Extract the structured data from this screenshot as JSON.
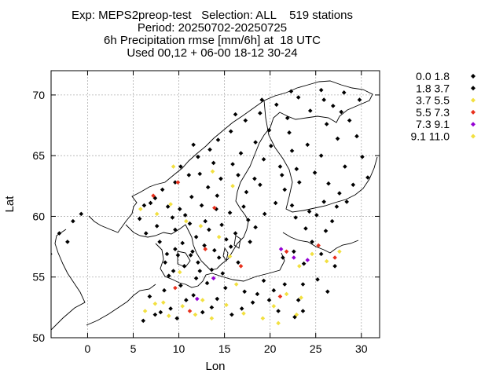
{
  "chart_data": {
    "type": "scatter",
    "title_lines": [
      "Exp: MEPS2preop-test   Selection: ALL    519 stations",
      "Period: 20250702-20250725",
      "6h Precipitation rmse [mm/6h] at  18 UTC",
      "Used 00,12 + 06-00 18-12 30-24"
    ],
    "xlabel": "Lon",
    "ylabel": "Lat",
    "xlim": [
      -4,
      32
    ],
    "ylim": [
      50,
      72
    ],
    "xticks": [
      0,
      5,
      10,
      15,
      20,
      25,
      30
    ],
    "yticks": [
      50,
      55,
      60,
      65,
      70
    ],
    "grid": true,
    "legend_position": "outside-right",
    "classes": [
      {
        "label": "0.0 1.8",
        "color": "#000000"
      },
      {
        "label": "1.8 3.7",
        "color": "#000000"
      },
      {
        "label": "3.7 5.5",
        "color": "#f2e040"
      },
      {
        "label": "5.5 7.3",
        "color": "#e8301c"
      },
      {
        "label": "7.3 9.1",
        "color": "#9400d3"
      },
      {
        "label": "9.1 11.0",
        "color": "#f2e040"
      }
    ],
    "points": [
      [
        8.0,
        52.1,
        0
      ],
      [
        9.8,
        51.6,
        0
      ],
      [
        11.6,
        53.5,
        0
      ],
      [
        14.2,
        53.2,
        0
      ],
      [
        16.9,
        52.4,
        0
      ],
      [
        18.6,
        53.6,
        0
      ],
      [
        20.9,
        52.2,
        0
      ],
      [
        22.7,
        51.7,
        0
      ],
      [
        6.1,
        51.4,
        0
      ],
      [
        7.4,
        51.9,
        0
      ],
      [
        9.1,
        52.4,
        0
      ],
      [
        13.6,
        52.5,
        0
      ],
      [
        15.8,
        51.9,
        0
      ],
      [
        19.9,
        53.1,
        0
      ],
      [
        23.6,
        52.2,
        0
      ],
      [
        17.2,
        53.8,
        0
      ],
      [
        10.2,
        54.3,
        0
      ],
      [
        11.9,
        54.9,
        0
      ],
      [
        9.4,
        55.5,
        0
      ],
      [
        10.6,
        55.9,
        0
      ],
      [
        8.5,
        56.2,
        0
      ],
      [
        9.9,
        56.8,
        0
      ],
      [
        12.1,
        56.2,
        0
      ],
      [
        9.6,
        57.3,
        0
      ],
      [
        10.4,
        57.8,
        0
      ],
      [
        13.6,
        55.6,
        0
      ],
      [
        14.4,
        56.6,
        0
      ],
      [
        12.8,
        57.6,
        0
      ],
      [
        15.7,
        57.5,
        0
      ],
      [
        16.5,
        56.2,
        0
      ],
      [
        17.8,
        57.9,
        0
      ],
      [
        18.4,
        59.1,
        0
      ],
      [
        16.2,
        58.6,
        0
      ],
      [
        14.7,
        59.3,
        0
      ],
      [
        13.3,
        58.9,
        0
      ],
      [
        11.9,
        58.3,
        0
      ],
      [
        11.2,
        59.4,
        0
      ],
      [
        10.7,
        60.1,
        0
      ],
      [
        9.3,
        59.9,
        0
      ],
      [
        7.6,
        59.2,
        0
      ],
      [
        6.4,
        58.6,
        0
      ],
      [
        5.7,
        59.8,
        0
      ],
      [
        6.2,
        60.9,
        0
      ],
      [
        7.4,
        61.5,
        0
      ],
      [
        8.2,
        62.2,
        0
      ],
      [
        9.6,
        62.8,
        0
      ],
      [
        11.4,
        61.6,
        0
      ],
      [
        12.5,
        60.9,
        0
      ],
      [
        14.1,
        60.6,
        0
      ],
      [
        15.6,
        60.3,
        0
      ],
      [
        17.1,
        60.8,
        0
      ],
      [
        17.4,
        62.0,
        0
      ],
      [
        18.3,
        63.1,
        0
      ],
      [
        16.5,
        63.4,
        0
      ],
      [
        14.6,
        63.1,
        0
      ],
      [
        13.2,
        62.4,
        0
      ],
      [
        12.3,
        63.5,
        0
      ],
      [
        11.1,
        63.4,
        0
      ],
      [
        10.2,
        64.1,
        0
      ],
      [
        12.1,
        64.9,
        0
      ],
      [
        13.4,
        65.5,
        0
      ],
      [
        14.3,
        66.3,
        0
      ],
      [
        15.7,
        67.0,
        0
      ],
      [
        17.3,
        67.9,
        0
      ],
      [
        18.9,
        68.5,
        0
      ],
      [
        20.7,
        69.2,
        0
      ],
      [
        23.1,
        69.8,
        0
      ],
      [
        25.6,
        70.4,
        0
      ],
      [
        28.1,
        70.2,
        0
      ],
      [
        29.8,
        69.6,
        0
      ],
      [
        26.9,
        69.1,
        0
      ],
      [
        24.4,
        68.7,
        0
      ],
      [
        21.9,
        68.1,
        0
      ],
      [
        19.9,
        67.1,
        0
      ],
      [
        18.4,
        66.1,
        0
      ],
      [
        16.8,
        65.2,
        0
      ],
      [
        19.3,
        64.7,
        0
      ],
      [
        21.1,
        64.1,
        0
      ],
      [
        22.4,
        65.4,
        0
      ],
      [
        24.1,
        65.9,
        0
      ],
      [
        25.6,
        65.0,
        0
      ],
      [
        27.4,
        66.4,
        0
      ],
      [
        26.2,
        67.6,
        0
      ],
      [
        28.7,
        67.9,
        0
      ],
      [
        24.9,
        63.6,
        0
      ],
      [
        23.2,
        62.8,
        0
      ],
      [
        21.6,
        62.2,
        0
      ],
      [
        22.4,
        60.9,
        0
      ],
      [
        24.3,
        60.4,
        0
      ],
      [
        25.9,
        61.2,
        0
      ],
      [
        27.6,
        61.9,
        0
      ],
      [
        29.1,
        62.6,
        0
      ],
      [
        26.4,
        62.7,
        0
      ],
      [
        28.2,
        64.1,
        0
      ],
      [
        30.1,
        64.9,
        0
      ],
      [
        27.3,
        60.8,
        0
      ],
      [
        25.1,
        60.1,
        0
      ],
      [
        22.8,
        59.9,
        0
      ],
      [
        23.9,
        59.0,
        0
      ],
      [
        26.1,
        58.8,
        0
      ],
      [
        24.6,
        57.9,
        0
      ],
      [
        22.6,
        57.1,
        0
      ],
      [
        21.4,
        56.6,
        0
      ],
      [
        23.7,
        56.1,
        0
      ],
      [
        25.2,
        54.8,
        0
      ],
      [
        21.6,
        54.4,
        0
      ],
      [
        19.3,
        54.7,
        0
      ],
      [
        -1.6,
        59.6,
        0
      ],
      [
        -0.7,
        60.2,
        0
      ],
      [
        -2.2,
        57.9,
        0
      ],
      [
        -3.1,
        58.6,
        0
      ],
      [
        -4.1,
        56.9,
        0
      ],
      [
        6.9,
        61.1,
        1
      ],
      [
        8.8,
        60.8,
        1
      ],
      [
        10.1,
        60.6,
        1
      ],
      [
        12.9,
        59.6,
        1
      ],
      [
        15.2,
        58.1,
        1
      ],
      [
        13.9,
        57.2,
        1
      ],
      [
        11.3,
        56.8,
        1
      ],
      [
        8.9,
        55.1,
        1
      ],
      [
        10.8,
        53.1,
        1
      ],
      [
        12.6,
        52.1,
        1
      ],
      [
        15.1,
        54.1,
        1
      ],
      [
        18.1,
        52.9,
        1
      ],
      [
        20.4,
        53.9,
        1
      ],
      [
        6.8,
        53.4,
        1
      ],
      [
        8.4,
        53.9,
        1
      ],
      [
        13.1,
        54.5,
        1
      ],
      [
        14.8,
        55.3,
        1
      ],
      [
        17.6,
        59.7,
        1
      ],
      [
        19.4,
        60.2,
        1
      ],
      [
        20.6,
        61.1,
        1
      ],
      [
        22.9,
        63.9,
        1
      ],
      [
        20.1,
        65.8,
        1
      ],
      [
        22.1,
        66.9,
        1
      ],
      [
        15.9,
        64.3,
        1
      ],
      [
        13.8,
        64.4,
        1
      ],
      [
        11.6,
        65.9,
        1
      ],
      [
        16.2,
        68.4,
        1
      ],
      [
        19.1,
        69.6,
        1
      ],
      [
        22.3,
        70.3,
        1
      ],
      [
        25.9,
        69.6,
        1
      ],
      [
        27.8,
        68.6,
        1
      ],
      [
        29.5,
        66.6,
        1
      ],
      [
        30.7,
        63.2,
        1
      ],
      [
        28.4,
        61.2,
        1
      ],
      [
        26.8,
        59.6,
        1
      ],
      [
        25.6,
        56.9,
        1
      ],
      [
        27.1,
        55.9,
        1
      ],
      [
        23.6,
        54.4,
        1
      ],
      [
        26.3,
        53.8,
        1
      ],
      [
        23.1,
        53.1,
        1
      ],
      [
        9.6,
        58.9,
        1
      ],
      [
        7.9,
        57.9,
        1
      ],
      [
        8.7,
        56.9,
        1
      ],
      [
        12.3,
        55.5,
        1
      ],
      [
        11.5,
        57.1,
        1
      ],
      [
        14.2,
        61.7,
        1
      ],
      [
        18.9,
        62.6,
        1
      ],
      [
        21.3,
        63.4,
        1
      ],
      [
        6.3,
        52.2,
        2
      ],
      [
        7.4,
        52.8,
        2
      ],
      [
        8.9,
        51.8,
        2
      ],
      [
        10.4,
        52.6,
        2
      ],
      [
        11.8,
        51.9,
        2
      ],
      [
        13.6,
        51.6,
        2
      ],
      [
        15.2,
        52.7,
        2
      ],
      [
        17.1,
        52.0,
        2
      ],
      [
        19.2,
        51.6,
        2
      ],
      [
        20.4,
        52.6,
        2
      ],
      [
        21.8,
        53.6,
        2
      ],
      [
        23.4,
        53.3,
        2
      ],
      [
        7.6,
        60.2,
        2
      ],
      [
        9.1,
        61.0,
        2
      ],
      [
        5.8,
        60.6,
        2
      ],
      [
        10.8,
        59.6,
        2
      ],
      [
        12.4,
        59.2,
        2
      ],
      [
        14.4,
        58.3,
        2
      ],
      [
        15.6,
        56.7,
        2
      ],
      [
        10.1,
        55.4,
        2
      ],
      [
        12.6,
        53.1,
        2
      ],
      [
        16.3,
        54.4,
        2
      ],
      [
        9.4,
        64.1,
        2
      ],
      [
        13.7,
        63.7,
        2
      ],
      [
        15.9,
        62.5,
        2
      ],
      [
        24.6,
        56.9,
        2
      ],
      [
        26.2,
        56.3,
        2
      ],
      [
        23.2,
        55.9,
        2
      ],
      [
        27.6,
        57.1,
        2
      ],
      [
        9.6,
        54.1,
        3
      ],
      [
        11.2,
        52.2,
        3
      ],
      [
        7.2,
        61.7,
        3
      ],
      [
        13.9,
        60.7,
        3
      ],
      [
        9.9,
        62.8,
        3
      ],
      [
        21.1,
        53.4,
        3
      ],
      [
        25.3,
        57.6,
        3
      ],
      [
        27.1,
        56.6,
        3
      ],
      [
        12.9,
        57.3,
        3
      ],
      [
        16.8,
        55.9,
        3
      ],
      [
        21.8,
        57.1,
        3
      ],
      [
        12.0,
        53.2,
        4
      ],
      [
        13.8,
        54.9,
        4
      ],
      [
        21.2,
        57.3,
        4
      ],
      [
        22.6,
        56.6,
        4
      ],
      [
        24.1,
        56.4,
        4
      ],
      [
        20.9,
        51.2,
        5
      ],
      [
        8.3,
        52.9,
        5
      ],
      [
        22.9,
        51.9,
        5
      ]
    ]
  }
}
